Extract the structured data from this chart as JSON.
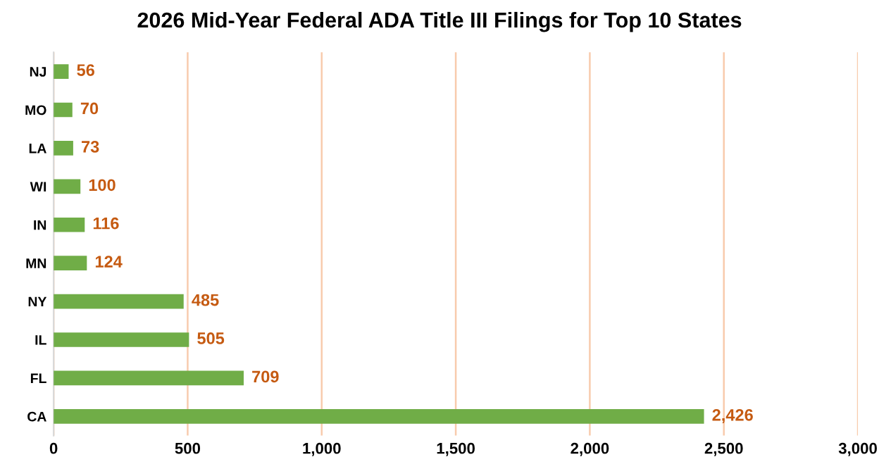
{
  "chart_data": {
    "type": "bar",
    "orientation": "horizontal",
    "title": "2026 Mid-Year Federal ADA Title III Filings for Top 10 States",
    "categories": [
      "NJ",
      "MO",
      "LA",
      "WI",
      "IN",
      "MN",
      "NY",
      "IL",
      "FL",
      "CA"
    ],
    "values": [
      56,
      70,
      73,
      100,
      116,
      124,
      485,
      505,
      709,
      2426
    ],
    "value_labels": [
      "56",
      "70",
      "73",
      "100",
      "116",
      "124",
      "485",
      "505",
      "709",
      "2,426"
    ],
    "color": "#70ad47",
    "xlim": [
      0,
      3000
    ],
    "xticks": [
      0,
      500,
      {
        "value": 1000,
        "label": "1,000"
      },
      {
        "value": 1500,
        "label": "1,500"
      },
      {
        "value": 2000,
        "label": "2,000"
      },
      {
        "value": 2500,
        "label": "2,500"
      },
      {
        "value": 3000,
        "label": "3,000"
      }
    ],
    "grid": "x",
    "legend": false
  }
}
